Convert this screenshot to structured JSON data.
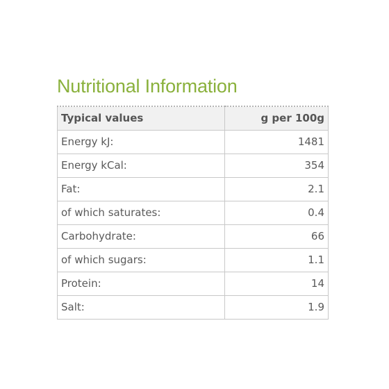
{
  "title": "Nutritional Information",
  "table": {
    "headers": [
      "Typical values",
      "g per 100g"
    ],
    "rows": [
      {
        "label": "Energy kJ:",
        "value": "1481"
      },
      {
        "label": "Energy kCal:",
        "value": "354"
      },
      {
        "label": "Fat:",
        "value": "2.1"
      },
      {
        "label": "of which saturates:",
        "value": "0.4"
      },
      {
        "label": "Carbohydrate:",
        "value": "66"
      },
      {
        "label": "of which sugars:",
        "value": "1.1"
      },
      {
        "label": "Protein:",
        "value": "14"
      },
      {
        "label": "Salt:",
        "value": "1.9"
      }
    ]
  },
  "colors": {
    "title": "#8ab13c",
    "header_background": "#f1f1f1",
    "border": "#c8c8c8",
    "text": "#555555"
  }
}
